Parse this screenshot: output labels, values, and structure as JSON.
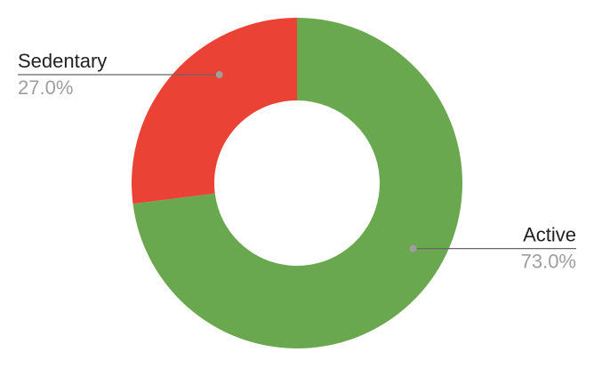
{
  "chart_data": {
    "type": "pie",
    "donut": true,
    "slices": [
      {
        "label": "Active",
        "value": 73.0,
        "value_label": "73.0%",
        "color": "#6aa84f"
      },
      {
        "label": "Sedentary",
        "value": 27.0,
        "value_label": "27.0%",
        "color": "#ea4335"
      }
    ],
    "start_angle_deg": 0,
    "direction": "clockwise",
    "leader_line_color": "#666666",
    "leader_dot_color": "#9e9e9e",
    "legend": "none"
  }
}
